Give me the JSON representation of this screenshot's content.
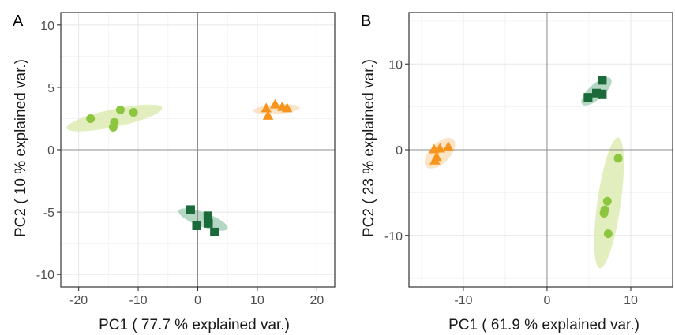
{
  "chart_data": [
    {
      "type": "scatter",
      "panel_label": "A",
      "xlabel": "PC1 ( 77.7 % explained var.)",
      "ylabel": "PC2 ( 10 % explained var.)",
      "xlim": [
        -23,
        23
      ],
      "ylim": [
        -11,
        11
      ],
      "xticks": [
        -20,
        -10,
        0,
        10,
        20
      ],
      "yticks": [
        -10,
        -5,
        0,
        5,
        10
      ],
      "grid": true,
      "reference_lines": {
        "x": 0,
        "y": 0
      },
      "series": [
        {
          "shape": "circle",
          "color": "#8cc63f",
          "points": [
            [
              -18.0,
              2.5
            ],
            [
              -14.0,
              2.2
            ],
            [
              -14.2,
              1.8
            ],
            [
              -13.0,
              3.2
            ],
            [
              -10.8,
              3.0
            ]
          ],
          "ellipse": {
            "cx": -14.0,
            "cy": 2.55,
            "rx": 8.2,
            "ry": 1.5,
            "angle_deg": 12,
            "fill": "#d9e8a8"
          }
        },
        {
          "shape": "triangle",
          "color": "#f7941d",
          "points": [
            [
              11.5,
              3.3
            ],
            [
              11.8,
              2.7
            ],
            [
              13.0,
              3.6
            ],
            [
              14.2,
              3.4
            ],
            [
              15.0,
              3.3
            ]
          ],
          "ellipse": {
            "cx": 13.2,
            "cy": 3.25,
            "rx": 3.9,
            "ry": 0.8,
            "angle_deg": 4,
            "fill": "#fbdcb4"
          }
        },
        {
          "shape": "square",
          "color": "#1b6b3a",
          "points": [
            [
              -1.2,
              -4.8
            ],
            [
              -0.2,
              -6.1
            ],
            [
              1.7,
              -5.3
            ],
            [
              1.8,
              -5.9
            ],
            [
              2.8,
              -6.6
            ]
          ],
          "ellipse": {
            "cx": 0.9,
            "cy": -5.6,
            "rx": 4.4,
            "ry": 1.2,
            "angle_deg": -20,
            "fill": "#9ccbb1"
          }
        }
      ]
    },
    {
      "type": "scatter",
      "panel_label": "B",
      "xlabel": "PC1 ( 61.9 % explained var.)",
      "ylabel": "PC2 ( 23 % explained var.)",
      "xlim": [
        -16.5,
        15
      ],
      "ylim": [
        -16,
        16
      ],
      "xticks": [
        -10,
        0,
        10
      ],
      "yticks": [
        -10,
        0,
        10
      ],
      "grid": true,
      "reference_lines": {
        "x": 0,
        "y": 0
      },
      "series": [
        {
          "shape": "triangle",
          "color": "#f7941d",
          "points": [
            [
              -13.5,
              0.0
            ],
            [
              -13.2,
              -0.9
            ],
            [
              -12.8,
              0.1
            ],
            [
              -13.4,
              -1.3
            ],
            [
              -11.8,
              0.3
            ]
          ],
          "ellipse": {
            "cx": -12.8,
            "cy": -0.4,
            "rx": 2.3,
            "ry": 1.2,
            "angle_deg": 45,
            "fill": "#fbdcb4"
          }
        },
        {
          "shape": "square",
          "color": "#1b6b3a",
          "points": [
            [
              4.9,
              6.1
            ],
            [
              5.9,
              6.6
            ],
            [
              6.6,
              6.5
            ],
            [
              6.6,
              8.1
            ]
          ],
          "ellipse": {
            "cx": 5.9,
            "cy": 6.8,
            "rx": 2.3,
            "ry": 0.9,
            "angle_deg": 42,
            "fill": "#9ccbb1"
          }
        },
        {
          "shape": "circle",
          "color": "#8cc63f",
          "points": [
            [
              8.5,
              -1.0
            ],
            [
              7.2,
              -6.0
            ],
            [
              6.9,
              -7.0
            ],
            [
              6.8,
              -7.4
            ],
            [
              7.3,
              -9.8
            ]
          ],
          "ellipse": {
            "cx": 7.4,
            "cy": -6.2,
            "rx": 7.9,
            "ry": 1.4,
            "angle_deg": 82,
            "fill": "#d9e8a8"
          }
        }
      ]
    }
  ]
}
